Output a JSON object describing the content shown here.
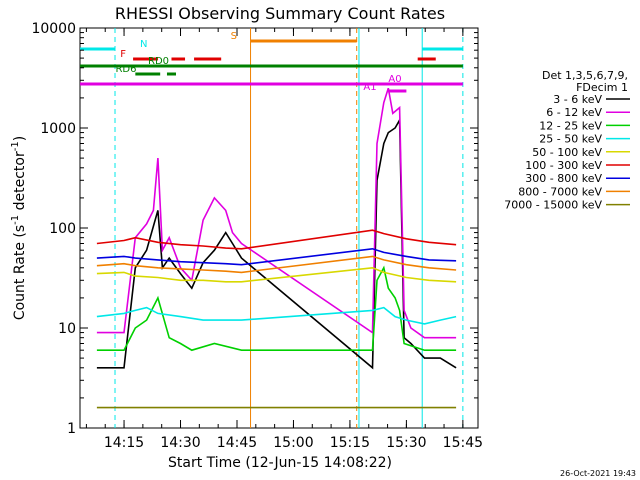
{
  "chart_data": {
    "type": "line",
    "title": "RHESSI Observing Summary Count Rates",
    "xlabel": "Start Time (12-Jun-15 14:08:22)",
    "ylabel_main": "Count Rate (s",
    "ylabel_sup": "-1",
    "ylabel_mid": " detector",
    "ylabel_end": ")",
    "x_ticks": [
      {
        "t": 14.25,
        "label": "14:15"
      },
      {
        "t": 14.5,
        "label": "14:30"
      },
      {
        "t": 14.75,
        "label": "14:45"
      },
      {
        "t": 15.0,
        "label": "15:00"
      },
      {
        "t": 15.25,
        "label": "15:15"
      },
      {
        "t": 15.5,
        "label": "15:30"
      },
      {
        "t": 15.75,
        "label": "15:45"
      }
    ],
    "xlim": [
      14.055,
      15.817
    ],
    "y_scale": "log",
    "ylim": [
      1,
      10000
    ],
    "y_ticks": [
      {
        "v": 1,
        "label": "1"
      },
      {
        "v": 10,
        "label": "10"
      },
      {
        "v": 100,
        "label": "100"
      },
      {
        "v": 1000,
        "label": "1000"
      },
      {
        "v": 10000,
        "label": "10000"
      }
    ],
    "legend_header": [
      "Det 1,3,5,6,7,9,",
      "FDecim 1"
    ],
    "series": [
      {
        "name": "3 - 6 keV",
        "color": "#000000",
        "points": [
          [
            14.13,
            4
          ],
          [
            14.19,
            4
          ],
          [
            14.25,
            4
          ],
          [
            14.3,
            40
          ],
          [
            14.35,
            60
          ],
          [
            14.4,
            150
          ],
          [
            14.42,
            40
          ],
          [
            14.45,
            50
          ],
          [
            14.5,
            35
          ],
          [
            14.55,
            25
          ],
          [
            14.6,
            45
          ],
          [
            14.65,
            60
          ],
          [
            14.7,
            90
          ],
          [
            14.73,
            70
          ],
          [
            14.77,
            50
          ],
          [
            15.35,
            4
          ],
          [
            15.37,
            300
          ],
          [
            15.4,
            700
          ],
          [
            15.42,
            900
          ],
          [
            15.45,
            1000
          ],
          [
            15.47,
            1200
          ],
          [
            15.49,
            8
          ],
          [
            15.52,
            7
          ],
          [
            15.58,
            5
          ],
          [
            15.65,
            5
          ],
          [
            15.72,
            4
          ]
        ]
      },
      {
        "name": "6 - 12 keV",
        "color": "#e000e0",
        "points": [
          [
            14.13,
            9
          ],
          [
            14.25,
            9
          ],
          [
            14.3,
            80
          ],
          [
            14.35,
            110
          ],
          [
            14.38,
            150
          ],
          [
            14.4,
            500
          ],
          [
            14.42,
            60
          ],
          [
            14.45,
            80
          ],
          [
            14.5,
            40
          ],
          [
            14.55,
            30
          ],
          [
            14.6,
            120
          ],
          [
            14.65,
            200
          ],
          [
            14.7,
            150
          ],
          [
            14.73,
            90
          ],
          [
            14.77,
            70
          ],
          [
            15.35,
            9
          ],
          [
            15.37,
            700
          ],
          [
            15.4,
            1800
          ],
          [
            15.42,
            2500
          ],
          [
            15.44,
            1400
          ],
          [
            15.47,
            1600
          ],
          [
            15.49,
            15
          ],
          [
            15.52,
            10
          ],
          [
            15.58,
            8
          ],
          [
            15.65,
            8
          ],
          [
            15.72,
            8
          ]
        ]
      },
      {
        "name": "12 - 25 keV",
        "color": "#00d000",
        "points": [
          [
            14.13,
            6
          ],
          [
            14.25,
            6
          ],
          [
            14.3,
            10
          ],
          [
            14.35,
            12
          ],
          [
            14.4,
            20
          ],
          [
            14.45,
            8
          ],
          [
            14.5,
            7
          ],
          [
            14.55,
            6
          ],
          [
            14.65,
            7
          ],
          [
            14.77,
            6
          ],
          [
            15.35,
            6
          ],
          [
            15.37,
            30
          ],
          [
            15.4,
            40
          ],
          [
            15.42,
            25
          ],
          [
            15.45,
            20
          ],
          [
            15.47,
            15
          ],
          [
            15.49,
            7
          ],
          [
            15.58,
            6
          ],
          [
            15.72,
            6
          ]
        ]
      },
      {
        "name": "25 - 50 keV",
        "color": "#00e8e8",
        "points": [
          [
            14.13,
            13
          ],
          [
            14.25,
            14
          ],
          [
            14.3,
            15
          ],
          [
            14.35,
            16
          ],
          [
            14.4,
            14
          ],
          [
            14.5,
            13
          ],
          [
            14.6,
            12
          ],
          [
            14.7,
            12
          ],
          [
            14.77,
            12
          ],
          [
            15.35,
            15
          ],
          [
            15.4,
            16
          ],
          [
            15.45,
            13
          ],
          [
            15.5,
            12
          ],
          [
            15.58,
            11
          ],
          [
            15.65,
            12
          ],
          [
            15.72,
            13
          ]
        ]
      },
      {
        "name": "50 - 100 keV",
        "color": "#d8d800",
        "points": [
          [
            14.13,
            35
          ],
          [
            14.25,
            36
          ],
          [
            14.3,
            33
          ],
          [
            14.4,
            32
          ],
          [
            14.5,
            30
          ],
          [
            14.6,
            30
          ],
          [
            14.7,
            29
          ],
          [
            14.77,
            29
          ],
          [
            15.35,
            40
          ],
          [
            15.4,
            36
          ],
          [
            15.5,
            32
          ],
          [
            15.6,
            30
          ],
          [
            15.72,
            29
          ]
        ]
      },
      {
        "name": "100 - 300 keV",
        "color": "#e00000",
        "points": [
          [
            14.13,
            70
          ],
          [
            14.25,
            75
          ],
          [
            14.3,
            80
          ],
          [
            14.4,
            72
          ],
          [
            14.5,
            68
          ],
          [
            14.6,
            66
          ],
          [
            14.7,
            63
          ],
          [
            14.77,
            62
          ],
          [
            15.35,
            95
          ],
          [
            15.4,
            88
          ],
          [
            15.5,
            78
          ],
          [
            15.6,
            72
          ],
          [
            15.72,
            68
          ]
        ]
      },
      {
        "name": "300 - 800 keV",
        "color": "#0000e0",
        "points": [
          [
            14.13,
            50
          ],
          [
            14.25,
            52
          ],
          [
            14.3,
            50
          ],
          [
            14.4,
            48
          ],
          [
            14.5,
            46
          ],
          [
            14.6,
            45
          ],
          [
            14.7,
            44
          ],
          [
            14.77,
            43
          ],
          [
            15.35,
            62
          ],
          [
            15.4,
            57
          ],
          [
            15.5,
            52
          ],
          [
            15.6,
            48
          ],
          [
            15.72,
            47
          ]
        ]
      },
      {
        "name": "800 - 7000 keV",
        "color": "#f08000",
        "points": [
          [
            14.13,
            42
          ],
          [
            14.25,
            44
          ],
          [
            14.3,
            42
          ],
          [
            14.4,
            40
          ],
          [
            14.5,
            39
          ],
          [
            14.6,
            38
          ],
          [
            14.7,
            37
          ],
          [
            14.77,
            36
          ],
          [
            15.35,
            52
          ],
          [
            15.4,
            48
          ],
          [
            15.5,
            43
          ],
          [
            15.6,
            40
          ],
          [
            15.72,
            38
          ]
        ]
      },
      {
        "name": "7000 - 15000 keV",
        "color": "#808000",
        "points": [
          [
            14.13,
            1.6
          ],
          [
            14.25,
            1.6
          ],
          [
            14.4,
            1.6
          ],
          [
            14.5,
            1.6
          ],
          [
            14.6,
            1.6
          ],
          [
            14.7,
            1.6
          ],
          [
            14.77,
            1.6
          ],
          [
            15.35,
            1.6
          ],
          [
            15.45,
            1.6
          ],
          [
            15.55,
            1.6
          ],
          [
            15.65,
            1.6
          ],
          [
            15.72,
            1.6
          ]
        ]
      }
    ],
    "state_bars": [
      {
        "label": "N",
        "color": "#00e8e8",
        "segments": [
          [
            14.055,
            14.21
          ],
          [
            15.57,
            15.75
          ]
        ]
      },
      {
        "label": "F",
        "color": "#e00000",
        "segments": [
          [
            14.29,
            14.4
          ],
          [
            14.46,
            14.52
          ],
          [
            14.56,
            14.68
          ],
          [
            15.55,
            15.63
          ]
        ]
      },
      {
        "label": "RD0",
        "color": "#008000",
        "segments": [
          [
            14.055,
            15.75
          ]
        ]
      },
      {
        "label": "RD6",
        "color": "#008000",
        "segments": [
          [
            14.3,
            14.41
          ],
          [
            14.44,
            14.48
          ]
        ]
      },
      {
        "label": "S",
        "color": "#f08000",
        "segments": [
          [
            14.81,
            15.28
          ]
        ]
      },
      {
        "label": "A1",
        "color": "#e000e0",
        "segments": [
          [
            14.055,
            15.75
          ]
        ]
      },
      {
        "label": "A0",
        "color": "#e000e0",
        "segments": [
          [
            15.42,
            15.5
          ]
        ]
      }
    ],
    "vertical_markers": [
      {
        "t": 14.21,
        "color": "#00e8e8",
        "style": "dashed"
      },
      {
        "t": 14.81,
        "color": "#f08000",
        "style": "solid"
      },
      {
        "t": 15.28,
        "color": "#f08000",
        "style": "dashed"
      },
      {
        "t": 15.29,
        "color": "#00e8e8",
        "style": "solid"
      },
      {
        "t": 15.57,
        "color": "#00e8e8",
        "style": "solid"
      },
      {
        "t": 15.75,
        "color": "#00e8e8",
        "style": "dashed"
      }
    ],
    "timestamp": "26-Oct-2021 19:43"
  }
}
